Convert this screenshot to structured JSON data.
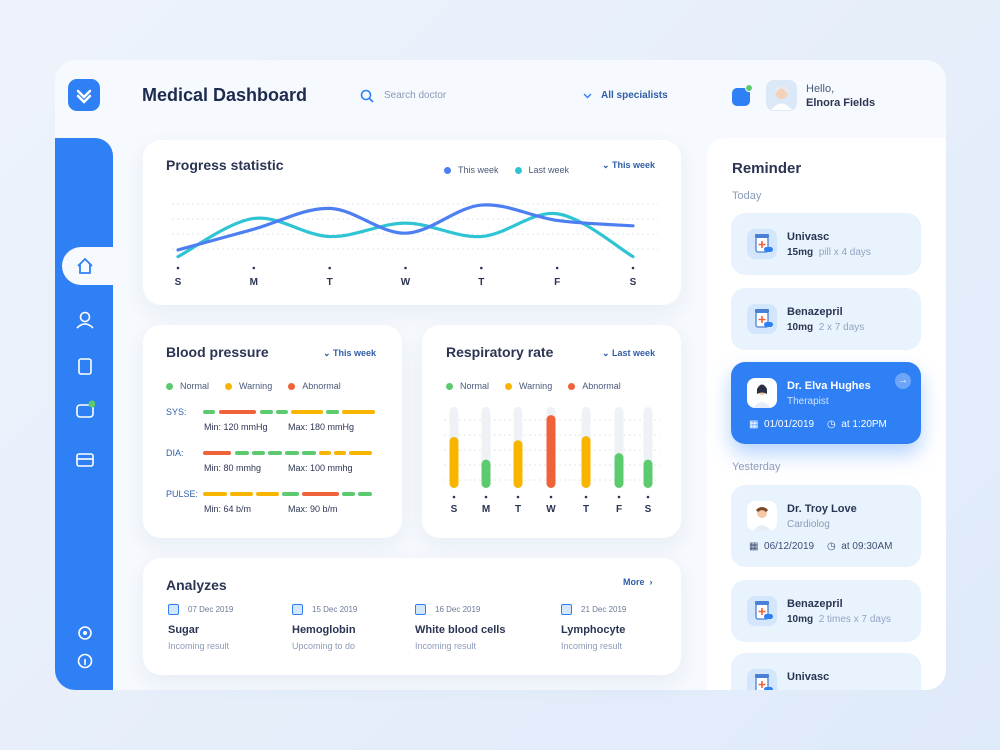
{
  "header": {
    "title": "Medical Dashboard",
    "search_placeholder": "Search doctor",
    "filter": "All specialists",
    "greeting": "Hello,",
    "user_name": "Elnora Fields"
  },
  "progress_statistic": {
    "title": "Progress statistic",
    "period": "This week",
    "chart": {
      "type": "line",
      "categories": [
        "S",
        "M",
        "T",
        "W",
        "T",
        "F",
        "S"
      ],
      "series": [
        {
          "name": "This week",
          "color": "#4d7ef2",
          "values": [
            18,
            49,
            80,
            43,
            85,
            62,
            54
          ]
        },
        {
          "name": "Last week",
          "color": "#2fc4d4",
          "values": [
            8,
            65,
            38,
            58,
            38,
            72,
            8
          ]
        }
      ],
      "ylim": [
        0,
        100
      ]
    }
  },
  "blood_pressure": {
    "title": "Blood pressure",
    "period": "This week",
    "legend": [
      {
        "name": "Normal",
        "color": "#5ccb6f"
      },
      {
        "name": "Warning",
        "color": "#f7b500"
      },
      {
        "name": "Abnormal",
        "color": "#f0623a"
      }
    ],
    "rows": [
      {
        "label": "SYS:",
        "min": "Min: 120 mmHg",
        "max": "Max: 180 mmHg"
      },
      {
        "label": "DIA:",
        "min": "Min: 80 mmhg",
        "max": "Max: 100 mmhg"
      },
      {
        "label": "PULSE:",
        "min": "Min: 64 b/m",
        "max": "Max: 90 b/m"
      }
    ]
  },
  "respiratory_rate": {
    "title": "Respiratory rate",
    "period": "Last week",
    "legend": [
      {
        "name": "Normal",
        "color": "#5ccb6f"
      },
      {
        "name": "Warning",
        "color": "#f7b500"
      },
      {
        "name": "Abnormal",
        "color": "#f0623a"
      }
    ],
    "chart": {
      "type": "bar",
      "categories": [
        "S",
        "M",
        "T",
        "W",
        "T",
        "F",
        "S"
      ],
      "values": [
        63,
        35,
        59,
        90,
        64,
        43,
        35
      ],
      "colors": [
        "#f7b500",
        "#5ccb6f",
        "#f7b500",
        "#f0623a",
        "#f7b500",
        "#5ccb6f",
        "#5ccb6f"
      ],
      "ylim": [
        0,
        100
      ]
    }
  },
  "analyzes": {
    "title": "Analyzes",
    "more": "More",
    "items": [
      {
        "date": "07 Dec 2019",
        "name": "Sugar",
        "status": "Incoming result"
      },
      {
        "date": "15 Dec 2019",
        "name": "Hemoglobin",
        "status": "Upcoming to do"
      },
      {
        "date": "16 Dec 2019",
        "name": "White blood cells",
        "status": "Incoming result"
      },
      {
        "date": "21 Dec 2019",
        "name": "Lymphocyte",
        "status": "Incoming result"
      }
    ]
  },
  "reminder": {
    "title": "Reminder",
    "today_label": "Today",
    "today": [
      {
        "name": "Univasc",
        "dose": "15mg",
        "schedule": "pill x 4 days"
      },
      {
        "name": "Benazepril",
        "dose": "10mg",
        "schedule": "2 x 7 days"
      },
      {
        "name": "Dr. Elva Hughes",
        "role": "Therapist",
        "date": "01/01/2019",
        "time": "at 1:20PM"
      }
    ],
    "yesterday_label": "Yesterday",
    "yesterday": [
      {
        "name": "Dr. Troy Love",
        "role": "Cardiolog",
        "date": "06/12/2019",
        "time": "at 09:30AM"
      },
      {
        "name": "Benazepril",
        "dose": "10mg",
        "schedule": "2 times  x 7 days"
      },
      {
        "name": "Univasc"
      }
    ]
  }
}
